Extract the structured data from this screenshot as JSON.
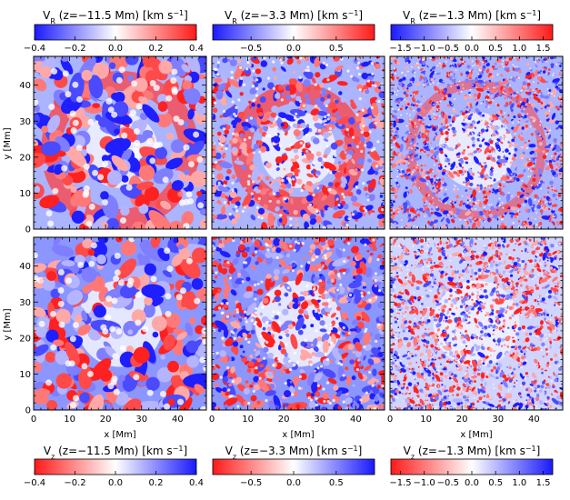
{
  "chart_data": {
    "type": "heatmap",
    "rows": [
      {
        "variable": "V_R",
        "panels": [
          {
            "title_var": "V",
            "title_sub": "R",
            "title_rest": " (z=−11.5 Mm)  [km s",
            "title_sup": "−1",
            "title_end": "]",
            "colorbar": {
              "position": "top",
              "range": [
                -0.4,
                0.4
              ],
              "ticks": [
                "−0.4",
                "−0.2",
                "0.0",
                "0.2",
                "0.4"
              ],
              "tick_values": [
                -0.4,
                -0.2,
                0.0,
                0.2,
                0.4
              ],
              "low_color": "#1a1aff",
              "high_color": "#ff1a1a"
            }
          },
          {
            "title_var": "V",
            "title_sub": "R",
            "title_rest": " (z=−3.3 Mm)  [km s",
            "title_sup": "−1",
            "title_end": "]",
            "colorbar": {
              "position": "top",
              "range": [
                -0.95,
                0.95
              ],
              "ticks": [
                "−0.5",
                "0.0",
                "0.5"
              ],
              "tick_values": [
                -0.5,
                0.0,
                0.5
              ],
              "low_color": "#1a1aff",
              "high_color": "#ff1a1a"
            }
          },
          {
            "title_var": "V",
            "title_sub": "R",
            "title_rest": " (z=−1.3 Mm)  [km s",
            "title_sup": "−1",
            "title_end": "]",
            "colorbar": {
              "position": "top",
              "range": [
                -1.7,
                1.7
              ],
              "ticks": [
                "−1.5",
                "−1.0",
                "−0.5",
                "0.0",
                "0.5",
                "1.0",
                "1.5"
              ],
              "tick_values": [
                -1.5,
                -1.0,
                -0.5,
                0.0,
                0.5,
                1.0,
                1.5
              ],
              "low_color": "#1a1aff",
              "high_color": "#ff1a1a"
            }
          }
        ]
      },
      {
        "variable": "V_z",
        "panels": [
          {
            "title_var": "V",
            "title_sub": "z",
            "title_rest": " (z=−11.5 Mm)  [km s",
            "title_sup": "−1",
            "title_end": "]",
            "colorbar": {
              "position": "bottom",
              "range": [
                -0.4,
                0.4
              ],
              "ticks": [
                "−0.4",
                "−0.2",
                "0.0",
                "0.2",
                "0.4"
              ],
              "tick_values": [
                -0.4,
                -0.2,
                0.0,
                0.2,
                0.4
              ],
              "low_color": "#ff1a1a",
              "high_color": "#1a1aff"
            }
          },
          {
            "title_var": "V",
            "title_sub": "z",
            "title_rest": " (z=−3.3 Mm)  [km s",
            "title_sup": "−1",
            "title_end": "]",
            "colorbar": {
              "position": "bottom",
              "range": [
                -0.95,
                0.95
              ],
              "ticks": [
                "−0.5",
                "0.0",
                "0.5"
              ],
              "tick_values": [
                -0.5,
                0.0,
                0.5
              ],
              "low_color": "#ff1a1a",
              "high_color": "#1a1aff"
            }
          },
          {
            "title_var": "V",
            "title_sub": "z",
            "title_rest": " (z=−1.3 Mm)  [km s",
            "title_sup": "−1",
            "title_end": "]",
            "colorbar": {
              "position": "bottom",
              "range": [
                -1.7,
                1.7
              ],
              "ticks": [
                "−1.5",
                "−1.0",
                "−0.5",
                "0.0",
                "0.5",
                "1.0",
                "1.5"
              ],
              "tick_values": [
                -1.5,
                -1.0,
                -0.5,
                0.0,
                0.5,
                1.0,
                1.5
              ],
              "low_color": "#ff1a1a",
              "high_color": "#1a1aff"
            }
          }
        ]
      }
    ],
    "xaxis": {
      "label": "x [Mm]",
      "range": [
        0,
        48
      ],
      "ticks": [
        0,
        10,
        20,
        30,
        40
      ]
    },
    "yaxis": {
      "label": "y [Mm]",
      "range": [
        0,
        48
      ],
      "ticks": [
        0,
        10,
        20,
        30,
        40
      ]
    }
  }
}
